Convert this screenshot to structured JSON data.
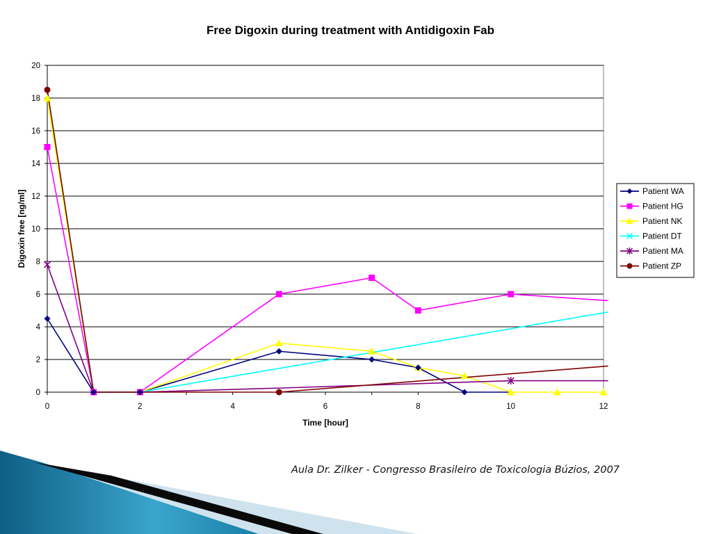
{
  "caption": "Aula Dr. Zilker - Congresso Brasileiro de Toxicologia Búzios, 2007",
  "colors": {
    "background": "#ffffff",
    "grid": "#000000",
    "decor_dark": "#0a0a0a",
    "decor_blue": "#1a7fa8",
    "decor_light": "#cfe3ee"
  },
  "chart_data": {
    "type": "line",
    "title": "Free Digoxin during treatment with Antidigoxin Fab",
    "xlabel": "Time [hour]",
    "ylabel": "Digoxin free [ng/ml]",
    "xlim": [
      0,
      12
    ],
    "ylim": [
      0,
      20
    ],
    "xticks": [
      0,
      2,
      4,
      6,
      8,
      10,
      12
    ],
    "yticks": [
      0,
      2,
      4,
      6,
      8,
      10,
      12,
      14,
      16,
      18,
      20
    ],
    "grid": "horizontal",
    "legend_position": "right",
    "series": [
      {
        "name": "Patient WA",
        "color": "#000080",
        "marker": "diamond",
        "x": [
          0,
          1,
          2,
          5,
          7,
          8,
          9,
          10
        ],
        "y": [
          4.5,
          0,
          0,
          2.5,
          2,
          1.5,
          0,
          0
        ],
        "marked": [
          true,
          true,
          true,
          true,
          true,
          true,
          true,
          false
        ]
      },
      {
        "name": "Patient HG",
        "color": "#ff00ff",
        "marker": "square",
        "x": [
          0,
          1,
          2,
          5,
          7,
          8,
          10,
          12.1
        ],
        "y": [
          15,
          0,
          0,
          6,
          7,
          5,
          6,
          5.6
        ],
        "marked": [
          true,
          true,
          true,
          true,
          true,
          true,
          true,
          false
        ]
      },
      {
        "name": "Patient NK",
        "color": "#ffff00",
        "marker": "triangle",
        "x": [
          0,
          1,
          2,
          5,
          7,
          8,
          9,
          10,
          11,
          12
        ],
        "y": [
          18,
          0,
          0,
          3,
          2.5,
          1.5,
          1,
          0,
          0,
          0
        ],
        "marked": [
          true,
          true,
          true,
          true,
          true,
          true,
          true,
          true,
          true,
          true
        ]
      },
      {
        "name": "Patient DT",
        "color": "#00ffff",
        "marker": "x",
        "x": [
          0,
          1,
          2,
          12.1
        ],
        "y": [
          18.5,
          0,
          0,
          4.9
        ],
        "marked": [
          false,
          false,
          false,
          false
        ]
      },
      {
        "name": "Patient MA",
        "color": "#800080",
        "marker": "star",
        "x": [
          0,
          1,
          2,
          5,
          10,
          12.1
        ],
        "y": [
          7.8,
          0,
          0,
          0.25,
          0.7,
          0.7
        ],
        "marked": [
          true,
          false,
          false,
          false,
          true,
          false
        ]
      },
      {
        "name": "Patient ZP",
        "color": "#800000",
        "marker": "circle",
        "x": [
          0,
          1,
          2,
          5,
          12.1
        ],
        "y": [
          18.5,
          0,
          0,
          0,
          1.6
        ],
        "marked": [
          true,
          true,
          true,
          true,
          false
        ]
      }
    ]
  }
}
